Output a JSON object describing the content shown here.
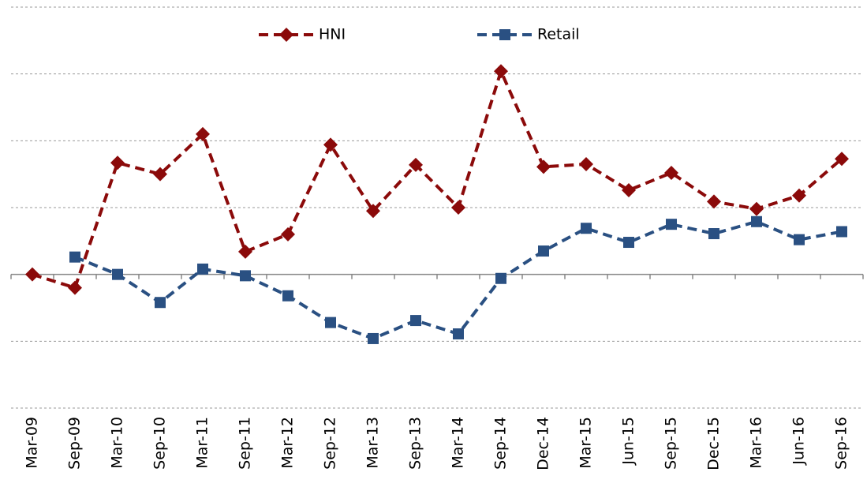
{
  "chart_data": {
    "type": "line",
    "categories": [
      "Mar-09",
      "Sep-09",
      "Mar-10",
      "Sep-10",
      "Mar-11",
      "Sep-11",
      "Mar-12",
      "Sep-12",
      "Mar-13",
      "Sep-13",
      "Mar-14",
      "Sep-14",
      "Dec-14",
      "Mar-15",
      "Jun-15",
      "Sep-15",
      "Dec-15",
      "Mar-16",
      "Jun-16",
      "Sep-16"
    ],
    "series": [
      {
        "name": "HNI",
        "color": "#8b0a0a",
        "marker": "diamond",
        "values": [
          0,
          -0.2,
          1.67,
          1.5,
          2.1,
          0.34,
          0.6,
          1.94,
          0.95,
          1.64,
          1.0,
          3.04,
          1.61,
          1.65,
          1.26,
          1.52,
          1.09,
          0.98,
          1.18,
          1.73
        ]
      },
      {
        "name": "Retail",
        "color": "#2a5082",
        "marker": "square",
        "values": [
          null,
          0.26,
          0,
          -0.42,
          0.08,
          -0.02,
          -0.32,
          -0.72,
          -0.96,
          -0.69,
          -0.89,
          -0.06,
          0.35,
          0.69,
          0.48,
          0.75,
          0.61,
          0.79,
          0.52,
          0.64
        ]
      }
    ],
    "ylim": [
      -2,
      4
    ],
    "yticks": [
      -2,
      -1,
      0,
      1,
      2,
      3,
      4
    ],
    "grid": true,
    "legend": "top"
  }
}
